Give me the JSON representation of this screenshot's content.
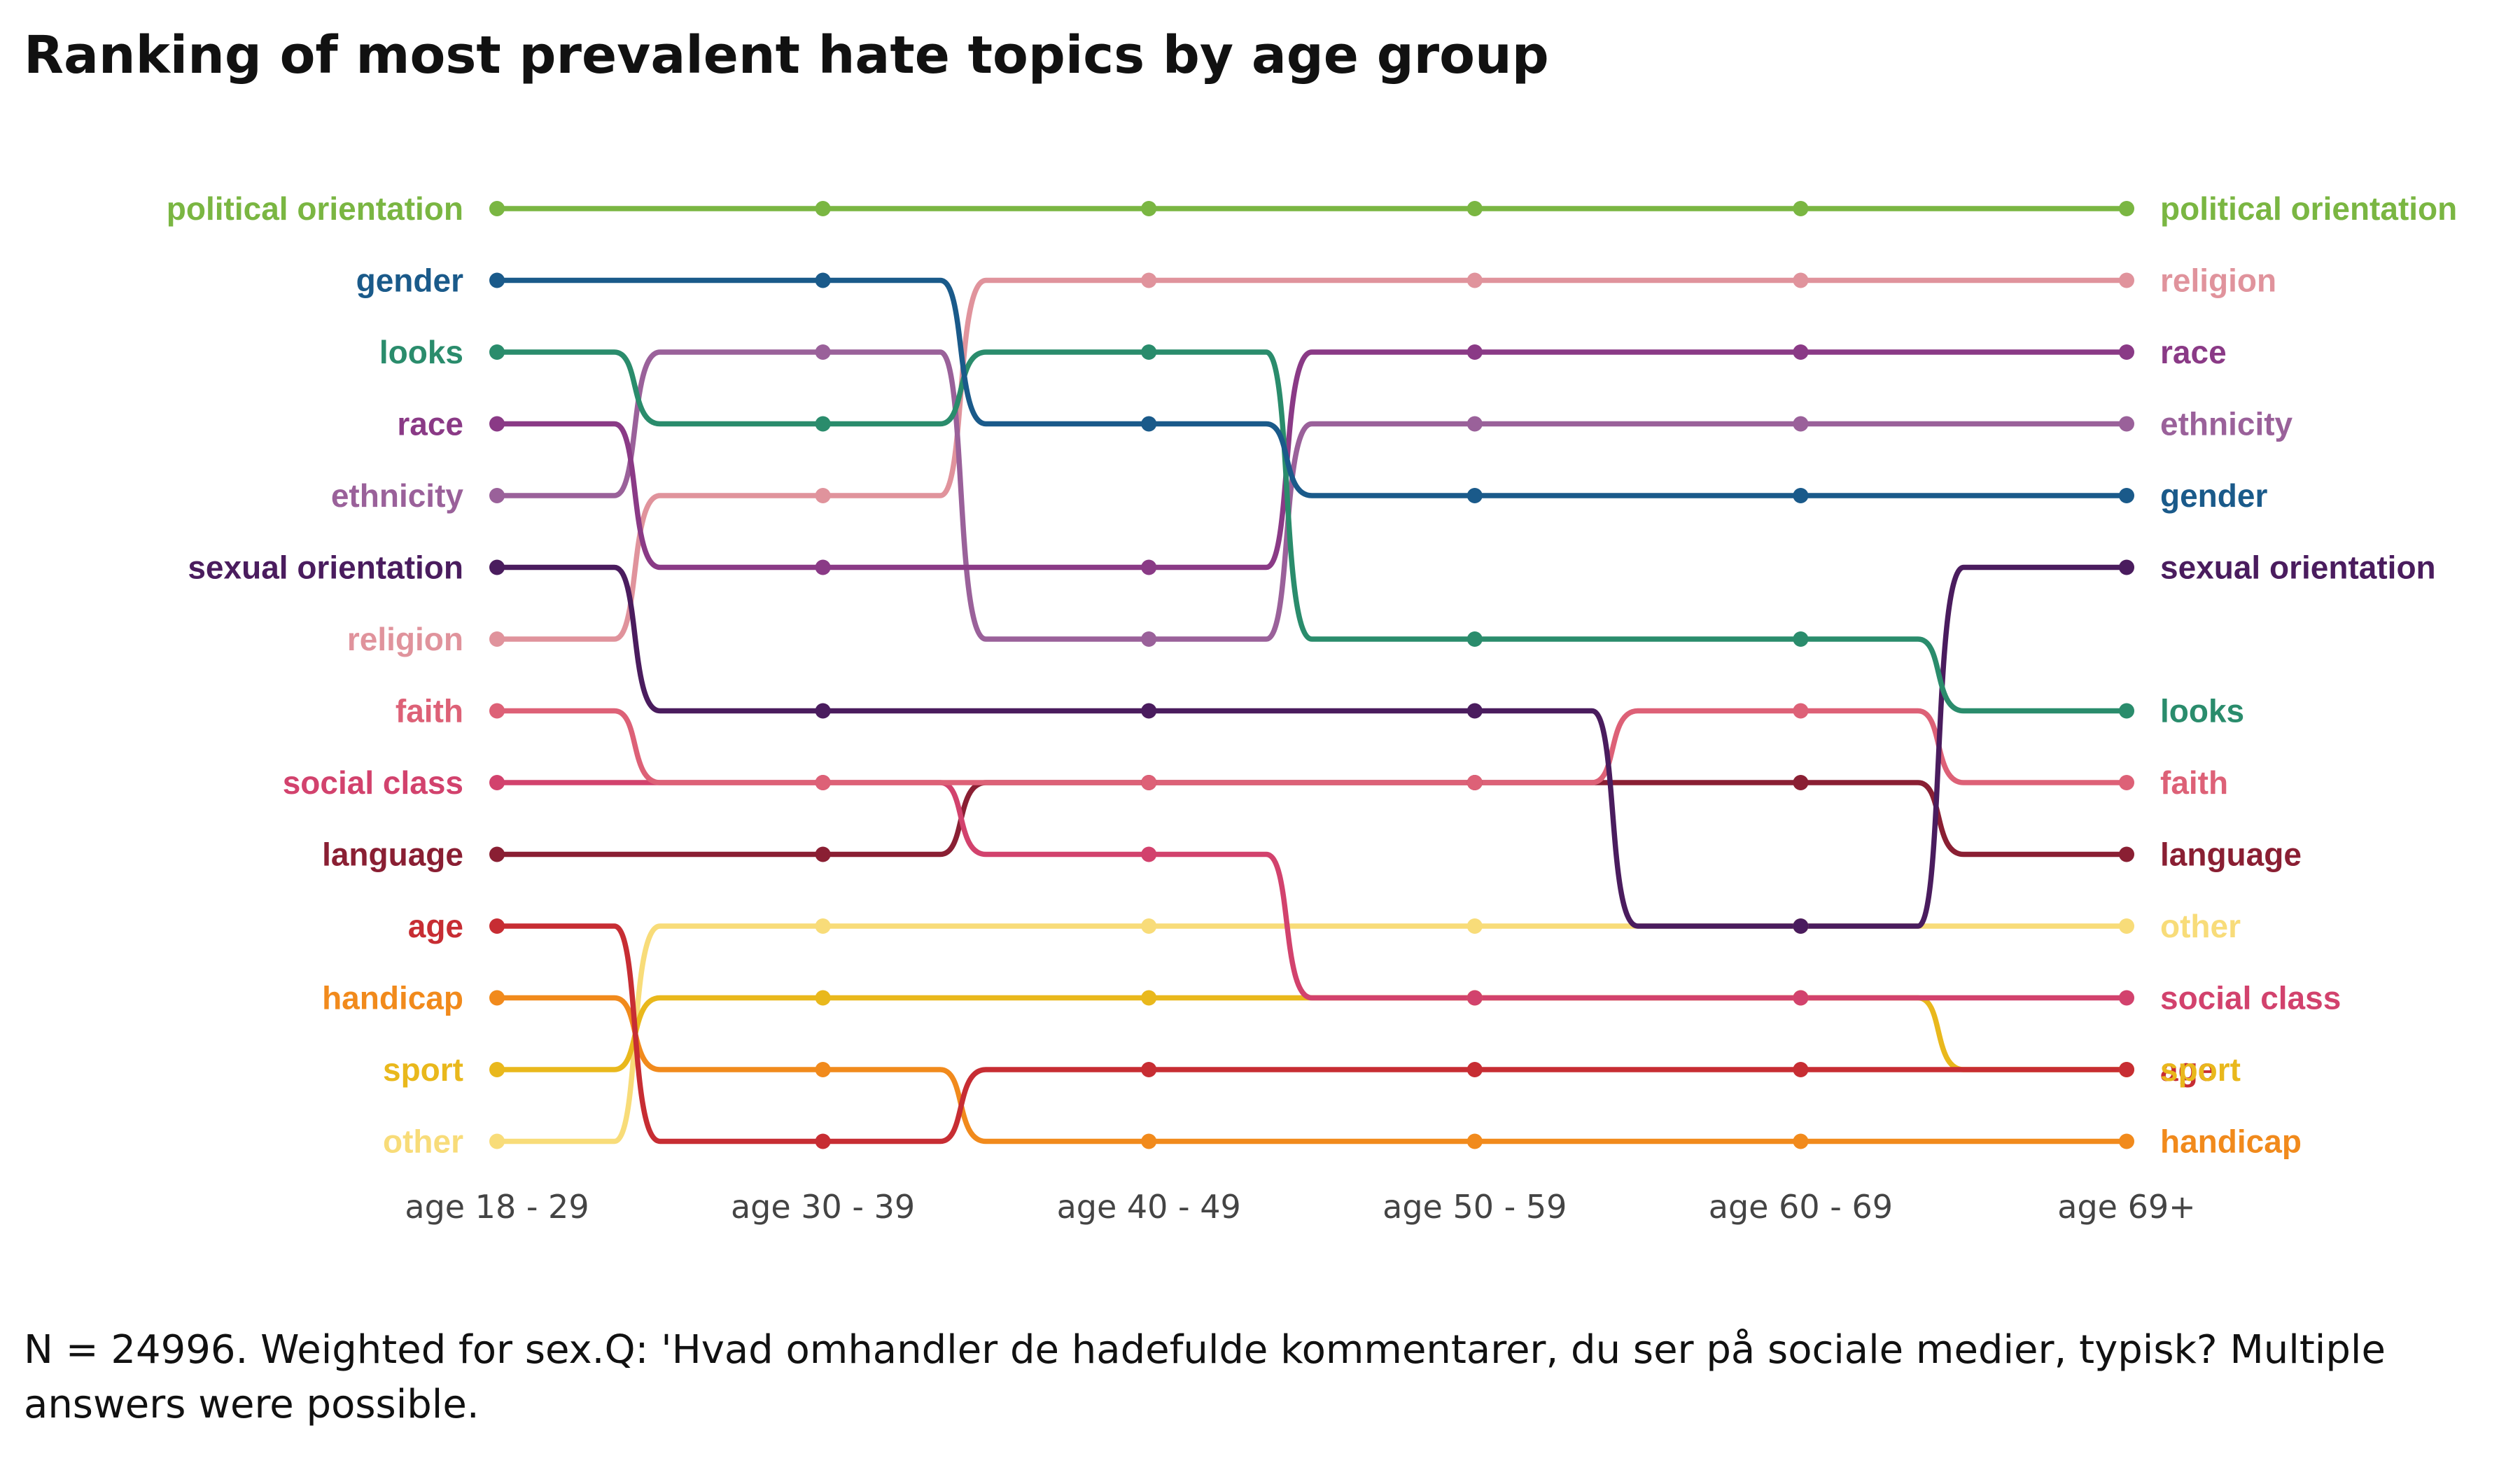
{
  "title": "Ranking of most prevalent hate topics by age group",
  "caption": "N = 24996. Weighted for sex.Q: 'Hvad omhandler de hadefulde kommentarer, du ser på sociale medier, typisk? Multiple answers were possible.",
  "chart_data": {
    "type": "bump",
    "x": [
      "age 18 - 29",
      "age 30 - 39",
      "age 40 - 49",
      "age 50 - 59",
      "age 60 - 69",
      "age 69+"
    ],
    "y_meaning": "rank (1 = most prevalent)",
    "series": [
      {
        "name": "political orientation",
        "color": "#7ab642",
        "ranks": [
          1,
          1,
          1,
          1,
          1,
          1
        ]
      },
      {
        "name": "gender",
        "color": "#1a5a8a",
        "ranks": [
          2,
          2,
          4,
          5,
          5,
          5
        ]
      },
      {
        "name": "looks",
        "color": "#2a8c6c",
        "ranks": [
          3,
          4,
          3,
          7,
          7,
          8
        ]
      },
      {
        "name": "race",
        "color": "#8a3a86",
        "ranks": [
          4,
          6,
          6,
          3,
          3,
          3
        ]
      },
      {
        "name": "ethnicity",
        "color": "#9a619a",
        "ranks": [
          5,
          3,
          7,
          4,
          4,
          4
        ]
      },
      {
        "name": "sexual orientation",
        "color": "#4a1c5e",
        "ranks": [
          6,
          8,
          8,
          8,
          11,
          6
        ]
      },
      {
        "name": "religion",
        "color": "#e0939c",
        "ranks": [
          7,
          5,
          2,
          2,
          2,
          2
        ]
      },
      {
        "name": "faith",
        "color": "#dd6177",
        "ranks": [
          8,
          9,
          9,
          9,
          8,
          9
        ]
      },
      {
        "name": "social class",
        "color": "#d2426d",
        "ranks": [
          9,
          9,
          10,
          12,
          12,
          12
        ]
      },
      {
        "name": "language",
        "color": "#8a1f33",
        "ranks": [
          10,
          10,
          9,
          9,
          9,
          10
        ]
      },
      {
        "name": "age",
        "color": "#c72d33",
        "ranks": [
          11,
          14,
          13,
          13,
          13,
          13
        ]
      },
      {
        "name": "handicap",
        "color": "#f18a1c",
        "ranks": [
          12,
          13,
          14,
          14,
          14,
          14
        ]
      },
      {
        "name": "sport",
        "color": "#e9b81c",
        "ranks": [
          13,
          12,
          12,
          12,
          12,
          13
        ]
      },
      {
        "name": "other",
        "color": "#f8dc79",
        "ranks": [
          14,
          11,
          11,
          11,
          11,
          11
        ]
      }
    ]
  }
}
